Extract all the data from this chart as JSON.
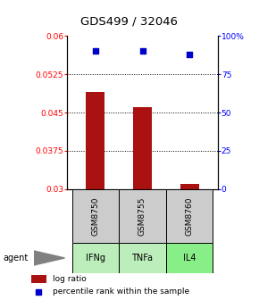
{
  "title": "GDS499 / 32046",
  "samples": [
    "GSM8750",
    "GSM8755",
    "GSM8760"
  ],
  "agents": [
    "IFNg",
    "TNFa",
    "IL4"
  ],
  "log_ratio": [
    0.049,
    0.046,
    0.031
  ],
  "percentile_rank": [
    90,
    90,
    88
  ],
  "ylim_left": [
    0.03,
    0.06
  ],
  "ylim_right": [
    0,
    100
  ],
  "yticks_left": [
    0.03,
    0.0375,
    0.045,
    0.0525,
    0.06
  ],
  "ytick_labels_left": [
    "0.03",
    "0.0375",
    "0.045",
    "0.0525",
    "0.06"
  ],
  "yticks_right": [
    0,
    25,
    50,
    75,
    100
  ],
  "ytick_labels_right": [
    "0",
    "25",
    "50",
    "75",
    "100%"
  ],
  "bar_color": "#aa1111",
  "dot_color": "#0000cc",
  "sample_box_color": "#cccccc",
  "agent_box_colors": [
    "#bbeebb",
    "#bbeebb",
    "#88ee88"
  ],
  "baseline": 0.03,
  "bar_width": 0.4,
  "grid_ticks": [
    0.0375,
    0.045,
    0.0525
  ],
  "legend_bar_label": "log ratio",
  "legend_dot_label": "percentile rank within the sample"
}
